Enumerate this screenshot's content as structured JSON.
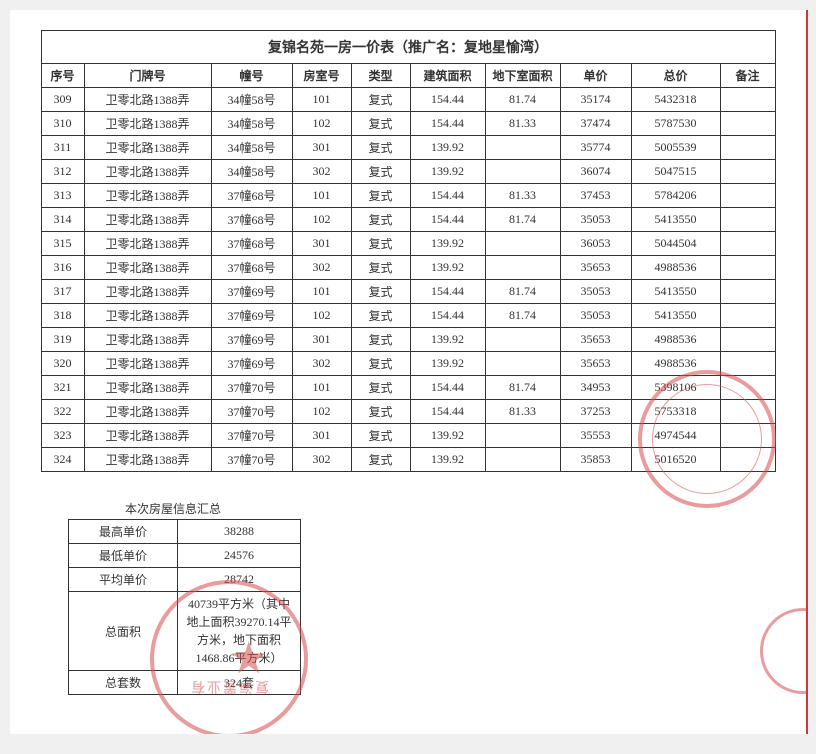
{
  "main": {
    "title": "复锦名苑一房一价表（推广名：复地星愉湾）",
    "headers": [
      "序号",
      "门牌号",
      "幢号",
      "房室号",
      "类型",
      "建筑面积",
      "地下室面积",
      "单价",
      "总价",
      "备注"
    ],
    "rows": [
      [
        "309",
        "卫零北路1388弄",
        "34幢58号",
        "101",
        "复式",
        "154.44",
        "81.74",
        "35174",
        "5432318",
        ""
      ],
      [
        "310",
        "卫零北路1388弄",
        "34幢58号",
        "102",
        "复式",
        "154.44",
        "81.33",
        "37474",
        "5787530",
        ""
      ],
      [
        "311",
        "卫零北路1388弄",
        "34幢58号",
        "301",
        "复式",
        "139.92",
        "",
        "35774",
        "5005539",
        ""
      ],
      [
        "312",
        "卫零北路1388弄",
        "34幢58号",
        "302",
        "复式",
        "139.92",
        "",
        "36074",
        "5047515",
        ""
      ],
      [
        "313",
        "卫零北路1388弄",
        "37幢68号",
        "101",
        "复式",
        "154.44",
        "81.33",
        "37453",
        "5784206",
        ""
      ],
      [
        "314",
        "卫零北路1388弄",
        "37幢68号",
        "102",
        "复式",
        "154.44",
        "81.74",
        "35053",
        "5413550",
        ""
      ],
      [
        "315",
        "卫零北路1388弄",
        "37幢68号",
        "301",
        "复式",
        "139.92",
        "",
        "36053",
        "5044504",
        ""
      ],
      [
        "316",
        "卫零北路1388弄",
        "37幢68号",
        "302",
        "复式",
        "139.92",
        "",
        "35653",
        "4988536",
        ""
      ],
      [
        "317",
        "卫零北路1388弄",
        "37幢69号",
        "101",
        "复式",
        "154.44",
        "81.74",
        "35053",
        "5413550",
        ""
      ],
      [
        "318",
        "卫零北路1388弄",
        "37幢69号",
        "102",
        "复式",
        "154.44",
        "81.74",
        "35053",
        "5413550",
        ""
      ],
      [
        "319",
        "卫零北路1388弄",
        "37幢69号",
        "301",
        "复式",
        "139.92",
        "",
        "35653",
        "4988536",
        ""
      ],
      [
        "320",
        "卫零北路1388弄",
        "37幢69号",
        "302",
        "复式",
        "139.92",
        "",
        "35653",
        "4988536",
        ""
      ],
      [
        "321",
        "卫零北路1388弄",
        "37幢70号",
        "101",
        "复式",
        "154.44",
        "81.74",
        "34953",
        "5398106",
        ""
      ],
      [
        "322",
        "卫零北路1388弄",
        "37幢70号",
        "102",
        "复式",
        "154.44",
        "81.33",
        "37253",
        "5753318",
        ""
      ],
      [
        "323",
        "卫零北路1388弄",
        "37幢70号",
        "301",
        "复式",
        "139.92",
        "",
        "35553",
        "4974544",
        ""
      ],
      [
        "324",
        "卫零北路1388弄",
        "37幢70号",
        "302",
        "复式",
        "139.92",
        "",
        "35853",
        "5016520",
        ""
      ]
    ]
  },
  "summary": {
    "title": "本次房屋信息汇总",
    "rows": [
      [
        "最高单价",
        "38288"
      ],
      [
        "最低单价",
        "24576"
      ],
      [
        "平均单价",
        "28742"
      ]
    ],
    "area_label": "总面积",
    "area_value": "40739平方米（其中地上面积39270.14平方米，地下面积1468.86平方米）",
    "count_label": "总套数",
    "count_value": "324套"
  }
}
